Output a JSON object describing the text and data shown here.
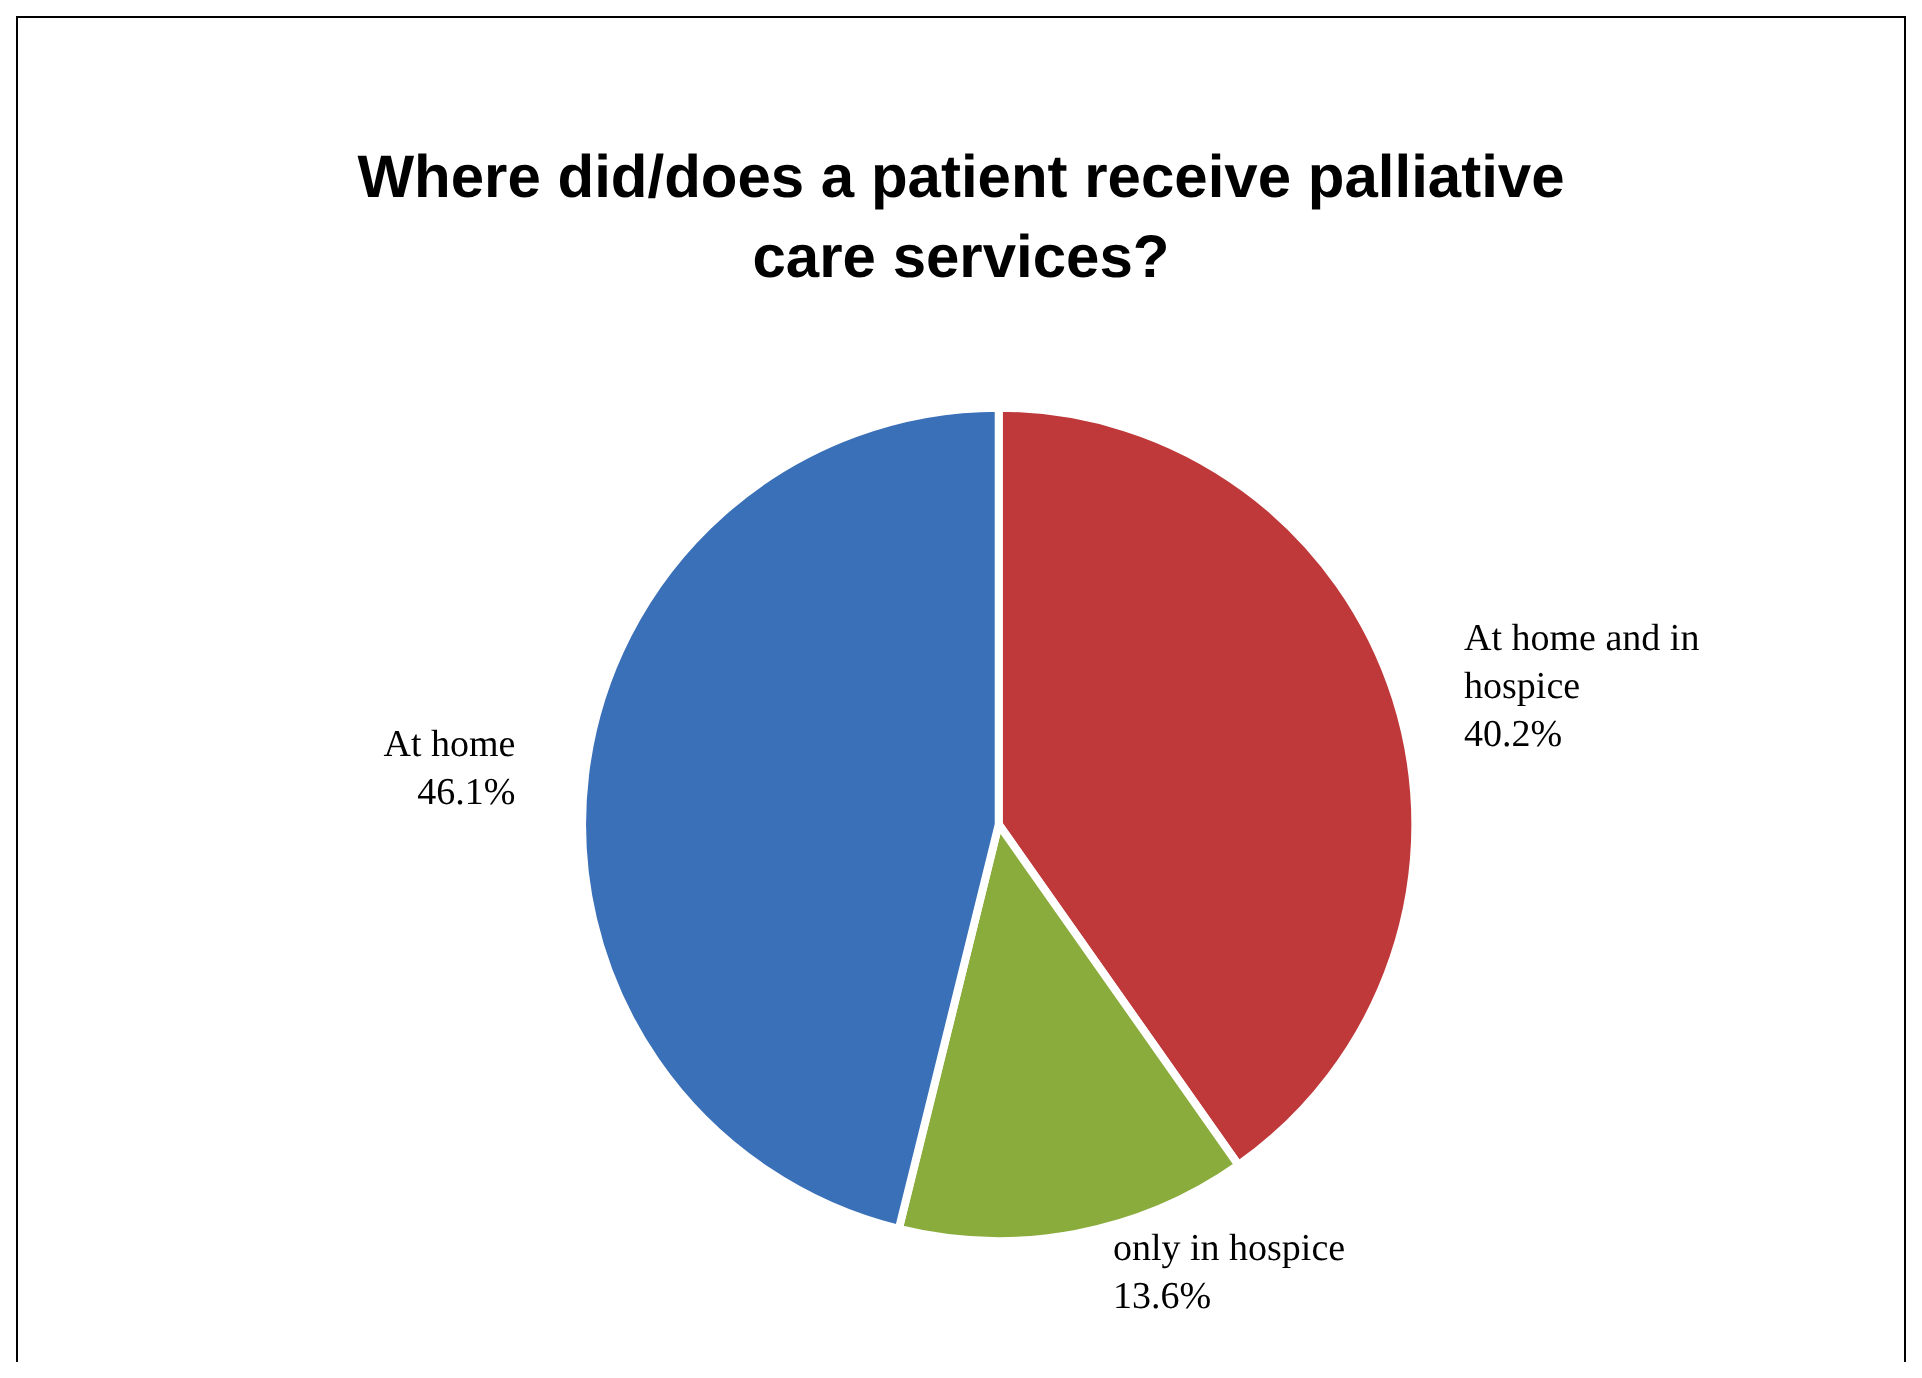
{
  "chart_data": {
    "type": "pie",
    "title": "Where did/does a patient receive palliative\ncare services?",
    "categories": [
      "At home and in hospice",
      "only in hospice",
      "At home"
    ],
    "values": [
      40.2,
      13.6,
      46.1
    ],
    "colors": [
      "#c0393a",
      "#8aac3c",
      "#3a70b8"
    ],
    "value_labels": [
      "40.2%",
      "13.6%",
      "46.1%"
    ],
    "legend": false
  }
}
